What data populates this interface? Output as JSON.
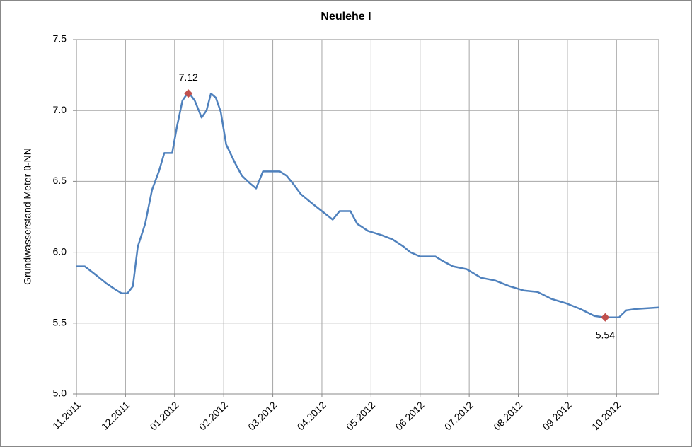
{
  "chart_data": {
    "type": "line",
    "title": "Neulehe I",
    "y_label": "Grundwasserstand Meter ü-NN",
    "grid": true,
    "xlim": [
      0,
      11.86
    ],
    "xticks": [
      {
        "value": 0,
        "label": "11.2011"
      },
      {
        "value": 1,
        "label": "12.2011"
      },
      {
        "value": 2,
        "label": "01.2012"
      },
      {
        "value": 3,
        "label": "02.2012"
      },
      {
        "value": 4,
        "label": "03.2012"
      },
      {
        "value": 5,
        "label": "04.2012"
      },
      {
        "value": 6,
        "label": "05.2012"
      },
      {
        "value": 7,
        "label": "06.2012"
      },
      {
        "value": 8,
        "label": "07.2012"
      },
      {
        "value": 9,
        "label": "08.2012"
      },
      {
        "value": 10,
        "label": "09.2012"
      },
      {
        "value": 11,
        "label": "10.2012"
      }
    ],
    "ylim": [
      5,
      7.5
    ],
    "yticks": [
      {
        "value": 5,
        "label": "5.0"
      },
      5.5,
      {
        "value": 6,
        "label": "6.0"
      },
      6.5,
      {
        "value": 7,
        "label": "7.0"
      },
      7.5
    ],
    "x": [
      0,
      0.17,
      0.32,
      0.43,
      0.61,
      0.78,
      0.92,
      1.04,
      1.15,
      1.25,
      1.4,
      1.54,
      1.68,
      1.79,
      1.95,
      2.05,
      2.16,
      2.28,
      2.41,
      2.55,
      2.65,
      2.74,
      2.84,
      2.94,
      3.05,
      3.23,
      3.37,
      3.52,
      3.66,
      3.8,
      4.14,
      4.28,
      4.42,
      4.57,
      4.78,
      5.0,
      5.22,
      5.36,
      5.58,
      5.72,
      5.94,
      6.22,
      6.44,
      6.66,
      6.8,
      7.0,
      7.31,
      7.45,
      7.67,
      7.95,
      8.24,
      8.53,
      8.82,
      9.11,
      9.39,
      9.68,
      9.97,
      10.26,
      10.55,
      10.76,
      11.05,
      11.2,
      11.41,
      11.86
    ],
    "series": [
      {
        "color": "#4f81bd",
        "values": [
          5.9,
          5.9,
          5.86,
          5.83,
          5.78,
          5.74,
          5.71,
          5.71,
          5.76,
          6.04,
          6.2,
          6.44,
          6.57,
          6.7,
          6.7,
          6.89,
          7.07,
          7.13,
          7.07,
          6.95,
          7.0,
          7.12,
          7.09,
          6.99,
          6.76,
          6.63,
          6.54,
          6.49,
          6.45,
          6.57,
          6.57,
          6.54,
          6.48,
          6.41,
          6.35,
          6.29,
          6.23,
          6.29,
          6.29,
          6.2,
          6.15,
          6.12,
          6.09,
          6.04,
          6.0,
          5.97,
          5.97,
          5.94,
          5.9,
          5.88,
          5.82,
          5.8,
          5.76,
          5.73,
          5.72,
          5.67,
          5.64,
          5.6,
          5.55,
          5.54,
          5.54,
          5.59,
          5.6,
          5.61
        ]
      }
    ],
    "annotations": {
      "color": "#c0504d",
      "x": [
        2.28,
        10.77
      ],
      "values": [
        7.12,
        5.54
      ]
    }
  }
}
